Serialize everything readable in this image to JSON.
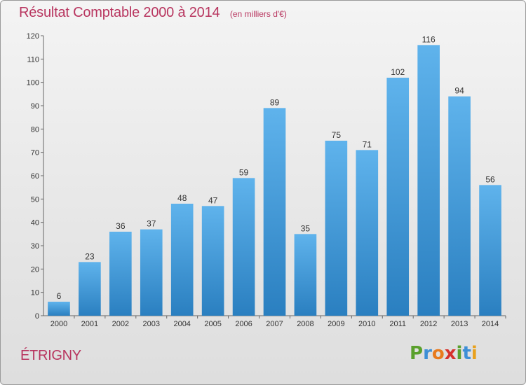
{
  "title": "Résultat Comptable 2000 à 2014",
  "unit": "(en milliers d'€)",
  "commune": "ÉTRIGNY",
  "logo": {
    "letters": [
      "P",
      "r",
      "o",
      "x",
      "i",
      "t",
      "i"
    ],
    "colors": [
      "#5aa02c",
      "#3d8fd6",
      "#e87b1e",
      "#d6312c",
      "#5aa02c",
      "#3d8fd6",
      "#e8a11e"
    ]
  },
  "colors": {
    "bar_top": "#5fb3ec",
    "bar_bottom": "#2a7fc0",
    "title": "#b8355f"
  },
  "chart_data": {
    "type": "bar",
    "categories": [
      "2000",
      "2001",
      "2002",
      "2003",
      "2004",
      "2005",
      "2006",
      "2007",
      "2008",
      "2009",
      "2010",
      "2011",
      "2012",
      "2013",
      "2014"
    ],
    "values": [
      6,
      23,
      36,
      37,
      48,
      47,
      59,
      89,
      35,
      75,
      71,
      102,
      116,
      94,
      56
    ],
    "ylim": [
      0,
      120
    ],
    "yticks": [
      0,
      10,
      20,
      30,
      40,
      50,
      60,
      70,
      80,
      90,
      100,
      110,
      120
    ],
    "grid": false,
    "xlabel": "",
    "ylabel": ""
  }
}
